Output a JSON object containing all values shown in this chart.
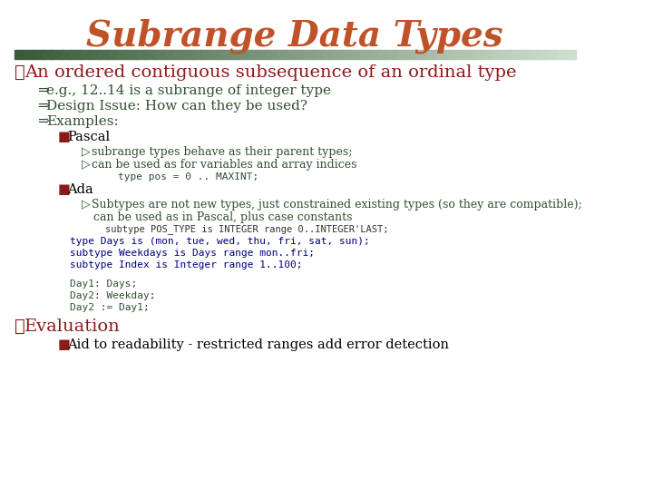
{
  "title": "Subrange Data Types",
  "title_color": "#C0522A",
  "title_font": "serif",
  "bg_color": "#FFFFFF",
  "bar_gradient_colors": [
    "#4a7a4a",
    "#8ab88a",
    "#c8d8c8"
  ],
  "content": [
    {
      "type": "bullet1",
      "symbol": "❖",
      "color": "#8B1A1A",
      "text": "An ordered contiguous subsequence of an ordinal type"
    },
    {
      "type": "bullet2",
      "symbol": "⇒",
      "color": "#2F4F2F",
      "text": "e.g., 12..14 is a subrange of integer type"
    },
    {
      "type": "bullet2",
      "symbol": "⇒",
      "color": "#2F4F2F",
      "text": "Design Issue: How can they be used?"
    },
    {
      "type": "bullet2",
      "symbol": "⇒",
      "color": "#2F4F2F",
      "text": "Examples:"
    },
    {
      "type": "bullet3",
      "symbol": "■",
      "color": "#8B1A1A",
      "text": "Pascal"
    },
    {
      "type": "bullet4",
      "symbol": "▷",
      "color": "#2F4F2F",
      "text": "subrange types behave as their parent types;"
    },
    {
      "type": "bullet4",
      "symbol": "▷",
      "color": "#2F4F2F",
      "text": "can be used as for variables and array indices"
    },
    {
      "type": "bullet4_indent",
      "symbol": "",
      "color": "#2F4F2F",
      "text": "    type pos = 0 .. MAXINT;"
    },
    {
      "type": "bullet3",
      "symbol": "■",
      "color": "#8B1A1A",
      "text": "Ada"
    },
    {
      "type": "bullet4",
      "symbol": "▷",
      "color": "#2F4F2F",
      "text": "Subtypes are not new types, just constrained existing types (so they are compatible);"
    },
    {
      "type": "bullet4_cont",
      "symbol": "",
      "color": "#2F4F2F",
      "text": "can be used as in Pascal, plus case constants"
    },
    {
      "type": "code_indent2",
      "color": "#2F4F2F",
      "text": "subtype POS_TYPE is INTEGER range 0..INTEGER'LAST;"
    },
    {
      "type": "code_indent1",
      "color": "#000080",
      "text": "type Days is (mon, tue, wed, thu, fri, sat, sun);"
    },
    {
      "type": "code_indent1",
      "color": "#000080",
      "text": "subtype Weekdays is Days range mon..fri;"
    },
    {
      "type": "code_indent1",
      "color": "#000080",
      "text": "subtype Index is Integer range 1..100;"
    },
    {
      "type": "blank"
    },
    {
      "type": "code_indent1",
      "color": "#2F4F2F",
      "text": "Day1: Days;"
    },
    {
      "type": "code_indent1",
      "color": "#2F4F2F",
      "text": "Day2: Weekday;"
    },
    {
      "type": "code_indent1",
      "color": "#2F4F2F",
      "text": "Day2 := Day1;"
    },
    {
      "type": "blank"
    },
    {
      "type": "bullet1",
      "symbol": "❖",
      "color": "#8B1A1A",
      "text": "Evaluation"
    },
    {
      "type": "bullet3",
      "symbol": "■",
      "color": "#8B1A1A",
      "text": "Aid to readability - restricted ranges add error detection"
    }
  ]
}
